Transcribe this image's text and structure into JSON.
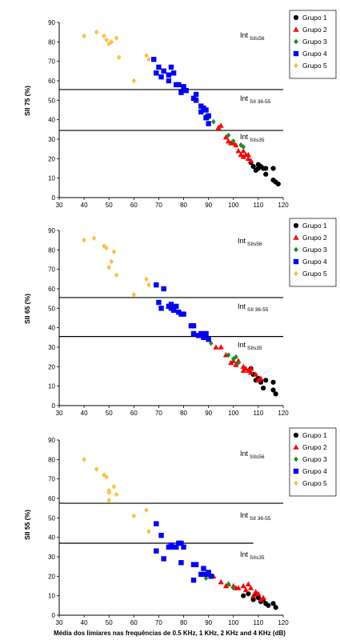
{
  "colors": {
    "Grupo 1": "#000000",
    "Grupo 2": "#ff0000",
    "Grupo 3": "#1f8a1f",
    "Grupo 4": "#0000ff",
    "Grupo 5": "#ffbf40"
  },
  "markers": {
    "Grupo 1": "circle",
    "Grupo 2": "triangle",
    "Grupo 3": "diamond",
    "Grupo 4": "square",
    "Grupo 5": "diamond"
  },
  "chart_data": [
    {
      "type": "scatter",
      "ylabel": "SII 75 (%)",
      "xlabel": "",
      "xlim": [
        30,
        120
      ],
      "ylim": [
        0,
        90
      ],
      "x_ticks": [
        "30",
        "40",
        "50",
        "60",
        "70",
        "80",
        "90",
        "100",
        "110",
        "120"
      ],
      "y_ticks": [
        "0",
        "10",
        "20",
        "30",
        "40",
        "50",
        "60",
        "70",
        "80",
        "90"
      ],
      "legend_position": "top-right",
      "thresholds": [
        {
          "y": 55.5,
          "x_start": 30,
          "x_end": 120
        },
        {
          "y": 34.5,
          "x_start": 30,
          "x_end": 120
        }
      ],
      "regions": [
        {
          "main": "Int",
          "sub": "SIIs56"
        },
        {
          "main": "Int",
          "sub": "SII 36-55"
        },
        {
          "main": "Int",
          "sub": "SIIs35"
        }
      ],
      "series": [
        {
          "name": "Grupo 1",
          "points": [
            [
              107,
              18
            ],
            [
              108,
              16
            ],
            [
              109,
              14
            ],
            [
              110,
              17
            ],
            [
              110,
              15
            ],
            [
              111,
              16
            ],
            [
              112,
              15
            ],
            [
              113,
              12
            ],
            [
              113,
              15
            ],
            [
              116,
              15
            ],
            [
              116,
              9
            ],
            [
              117,
              8
            ],
            [
              118,
              7
            ]
          ]
        },
        {
          "name": "Grupo 2",
          "points": [
            [
              94,
              36
            ],
            [
              95,
              37
            ],
            [
              97,
              31
            ],
            [
              98,
              29
            ],
            [
              99,
              28
            ],
            [
              100,
              28
            ],
            [
              101,
              27
            ],
            [
              102,
              24
            ],
            [
              103,
              22
            ],
            [
              104,
              21
            ],
            [
              104,
              24
            ],
            [
              105,
              22
            ],
            [
              106,
              20
            ],
            [
              106,
              22
            ],
            [
              107,
              19
            ]
          ]
        },
        {
          "name": "Grupo 3",
          "points": [
            [
              89,
              42
            ],
            [
              90,
              41
            ],
            [
              92,
              39
            ],
            [
              98,
              32
            ],
            [
              100,
              29
            ],
            [
              103,
              27
            ],
            [
              104,
              26
            ]
          ]
        },
        {
          "name": "Grupo 4",
          "points": [
            [
              68,
              71
            ],
            [
              69,
              64
            ],
            [
              70,
              67
            ],
            [
              71,
              62
            ],
            [
              72,
              65
            ],
            [
              74,
              63
            ],
            [
              74,
              60
            ],
            [
              75,
              67
            ],
            [
              76,
              64
            ],
            [
              77,
              58
            ],
            [
              78,
              58
            ],
            [
              79,
              54
            ],
            [
              80,
              57
            ],
            [
              81,
              55
            ],
            [
              84,
              51
            ],
            [
              85,
              53
            ],
            [
              85,
              50
            ],
            [
              87,
              47
            ],
            [
              87,
              44
            ],
            [
              88,
              46
            ],
            [
              89,
              45
            ],
            [
              89,
              41
            ],
            [
              90,
              42
            ],
            [
              90,
              38
            ]
          ]
        },
        {
          "name": "Grupo 5",
          "points": [
            [
              40,
              83
            ],
            [
              45,
              85
            ],
            [
              48,
              83
            ],
            [
              49,
              81
            ],
            [
              50,
              79
            ],
            [
              51,
              80
            ],
            [
              53,
              82
            ],
            [
              54,
              72
            ],
            [
              60,
              60
            ],
            [
              65,
              73
            ],
            [
              66,
              71
            ]
          ]
        }
      ]
    },
    {
      "type": "scatter",
      "ylabel": "SII 65 (%)",
      "xlabel": "",
      "xlim": [
        30,
        120
      ],
      "ylim": [
        0,
        90
      ],
      "x_ticks": [
        "30",
        "40",
        "50",
        "60",
        "70",
        "80",
        "90",
        "100",
        "110",
        "120"
      ],
      "y_ticks": [
        "0",
        "10",
        "20",
        "30",
        "40",
        "50",
        "60",
        "70",
        "80",
        "90"
      ],
      "legend_position": "top-right",
      "thresholds": [
        {
          "y": 55.5,
          "x_start": 30,
          "x_end": 120
        },
        {
          "y": 35.5,
          "x_start": 30,
          "x_end": 120
        }
      ],
      "regions": [
        {
          "main": "Int",
          "sub": "SIIs56"
        },
        {
          "main": "Int",
          "sub": "SII 36-55"
        },
        {
          "main": "Int",
          "sub": "SIIs35"
        }
      ],
      "series": [
        {
          "name": "Grupo 1",
          "points": [
            [
              107,
              19
            ],
            [
              108,
              16
            ],
            [
              109,
              13
            ],
            [
              110,
              14
            ],
            [
              111,
              12
            ],
            [
              112,
              9
            ],
            [
              113,
              13
            ],
            [
              116,
              12
            ],
            [
              116,
              8
            ],
            [
              117,
              6
            ]
          ]
        },
        {
          "name": "Grupo 2",
          "points": [
            [
              93,
              30
            ],
            [
              95,
              30
            ],
            [
              97,
              26
            ],
            [
              99,
              22
            ],
            [
              100,
              23
            ],
            [
              101,
              21
            ],
            [
              102,
              23
            ],
            [
              104,
              18
            ],
            [
              104,
              20
            ],
            [
              105,
              19
            ],
            [
              106,
              18
            ],
            [
              107,
              17
            ],
            [
              107,
              19
            ],
            [
              109,
              16
            ],
            [
              110,
              13
            ],
            [
              111,
              14
            ]
          ]
        },
        {
          "name": "Grupo 3",
          "points": [
            [
              91,
              32
            ],
            [
              98,
              26
            ],
            [
              100,
              24
            ],
            [
              101,
              25
            ],
            [
              102,
              22
            ]
          ]
        },
        {
          "name": "Grupo 4",
          "points": [
            [
              69,
              62
            ],
            [
              70,
              53
            ],
            [
              71,
              50
            ],
            [
              72,
              60
            ],
            [
              74,
              51
            ],
            [
              75,
              50
            ],
            [
              75,
              52
            ],
            [
              76,
              49
            ],
            [
              77,
              51
            ],
            [
              78,
              48
            ],
            [
              79,
              47
            ],
            [
              80,
              47
            ],
            [
              83,
              41
            ],
            [
              84,
              41
            ],
            [
              84,
              37
            ],
            [
              86,
              36
            ],
            [
              87,
              37
            ],
            [
              88,
              35
            ],
            [
              89,
              37
            ],
            [
              90,
              34
            ]
          ]
        },
        {
          "name": "Grupo 5",
          "points": [
            [
              40,
              85
            ],
            [
              44,
              86
            ],
            [
              48,
              82
            ],
            [
              49,
              81
            ],
            [
              50,
              71
            ],
            [
              51,
              74
            ],
            [
              52,
              79
            ],
            [
              53,
              67
            ],
            [
              60,
              57
            ],
            [
              65,
              65
            ],
            [
              66,
              62
            ]
          ]
        }
      ]
    },
    {
      "type": "scatter",
      "ylabel": "SII 55 (%)",
      "xlabel": "Média dos limiares nas frequências de 0.5 KHz, 1 KHz, 2 KHz and 4 KHz (dB)",
      "xlim": [
        30,
        120
      ],
      "ylim": [
        0,
        90
      ],
      "x_ticks": [
        "30",
        "40",
        "50",
        "60",
        "70",
        "80",
        "90",
        "100",
        "110",
        "120"
      ],
      "y_ticks": [
        "0",
        "10",
        "20",
        "30",
        "40",
        "50",
        "60",
        "70",
        "80",
        "90"
      ],
      "legend_position": "top-right",
      "thresholds": [
        {
          "y": 57.5,
          "x_start": 30,
          "x_end": 120
        },
        {
          "y": 37,
          "x_start": 30,
          "x_end": 108
        }
      ],
      "regions": [
        {
          "main": "Int",
          "sub": "SIIs56"
        },
        {
          "main": "Int",
          "sub": "SII 36-55"
        },
        {
          "main": "Int",
          "sub": "SIIs35"
        }
      ],
      "series": [
        {
          "name": "Grupo 1",
          "points": [
            [
              104,
              10
            ],
            [
              106,
              11
            ],
            [
              108,
              8
            ],
            [
              109,
              11
            ],
            [
              110,
              9
            ],
            [
              111,
              7
            ],
            [
              112,
              8
            ],
            [
              113,
              6
            ],
            [
              114,
              5
            ],
            [
              116,
              6
            ],
            [
              117,
              4
            ]
          ]
        },
        {
          "name": "Grupo 2",
          "points": [
            [
              92,
              20
            ],
            [
              95,
              17
            ],
            [
              97,
              15
            ],
            [
              98,
              16
            ],
            [
              100,
              15
            ],
            [
              101,
              14
            ],
            [
              102,
              14
            ],
            [
              104,
              15
            ],
            [
              105,
              13
            ],
            [
              106,
              16
            ],
            [
              107,
              14
            ],
            [
              108,
              10
            ],
            [
              109,
              12
            ],
            [
              110,
              11
            ],
            [
              111,
              8
            ],
            [
              112,
              9
            ]
          ]
        },
        {
          "name": "Grupo 3",
          "points": [
            [
              89,
              19
            ],
            [
              98,
              16
            ],
            [
              100,
              14
            ]
          ]
        },
        {
          "name": "Grupo 4",
          "points": [
            [
              69,
              47
            ],
            [
              69,
              33
            ],
            [
              71,
              41
            ],
            [
              72,
              29
            ],
            [
              74,
              35
            ],
            [
              75,
              36
            ],
            [
              76,
              35
            ],
            [
              77,
              35
            ],
            [
              78,
              37
            ],
            [
              79,
              37
            ],
            [
              79,
              27
            ],
            [
              80,
              35
            ],
            [
              84,
              26
            ],
            [
              84,
              18
            ],
            [
              85,
              26
            ],
            [
              87,
              21
            ],
            [
              88,
              24
            ],
            [
              89,
              21
            ],
            [
              90,
              22
            ],
            [
              91,
              20
            ]
          ]
        },
        {
          "name": "Grupo 5",
          "points": [
            [
              40,
              80
            ],
            [
              45,
              75
            ],
            [
              48,
              72
            ],
            [
              49,
              71
            ],
            [
              50,
              64
            ],
            [
              50,
              63
            ],
            [
              50,
              59
            ],
            [
              52,
              66
            ],
            [
              53,
              62
            ],
            [
              60,
              51
            ],
            [
              65,
              54
            ],
            [
              66,
              43
            ]
          ]
        }
      ]
    }
  ]
}
